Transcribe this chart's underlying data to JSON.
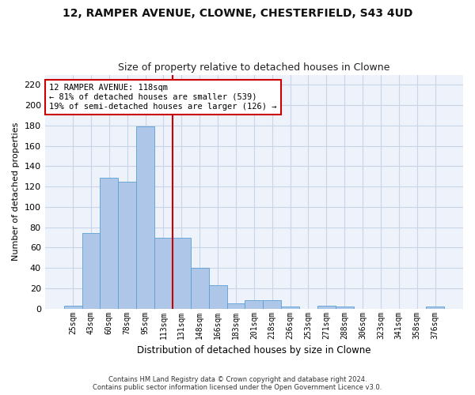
{
  "title1": "12, RAMPER AVENUE, CLOWNE, CHESTERFIELD, S43 4UD",
  "title2": "Size of property relative to detached houses in Clowne",
  "xlabel": "Distribution of detached houses by size in Clowne",
  "ylabel": "Number of detached properties",
  "footer1": "Contains HM Land Registry data © Crown copyright and database right 2024.",
  "footer2": "Contains public sector information licensed under the Open Government Licence v3.0.",
  "categories": [
    "25sqm",
    "43sqm",
    "60sqm",
    "78sqm",
    "95sqm",
    "113sqm",
    "131sqm",
    "148sqm",
    "166sqm",
    "183sqm",
    "201sqm",
    "218sqm",
    "236sqm",
    "253sqm",
    "271sqm",
    "288sqm",
    "306sqm",
    "323sqm",
    "341sqm",
    "358sqm",
    "376sqm"
  ],
  "values": [
    3,
    74,
    129,
    125,
    179,
    70,
    70,
    40,
    23,
    5,
    8,
    8,
    2,
    0,
    3,
    2,
    0,
    0,
    0,
    0,
    2
  ],
  "bar_color": "#aec6e8",
  "bar_edge_color": "#5a9fd4",
  "annotation_line1": "12 RAMPER AVENUE: 118sqm",
  "annotation_line2": "← 81% of detached houses are smaller (539)",
  "annotation_line3": "19% of semi-detached houses are larger (126) →",
  "ref_line_color": "#cc0000",
  "annotation_box_color": "#ffffff",
  "annotation_box_edge": "#cc0000",
  "ylim": [
    0,
    230
  ],
  "yticks": [
    0,
    20,
    40,
    60,
    80,
    100,
    120,
    140,
    160,
    180,
    200,
    220
  ],
  "grid_color": "#c8d4e8",
  "background_color": "#eef2fa"
}
